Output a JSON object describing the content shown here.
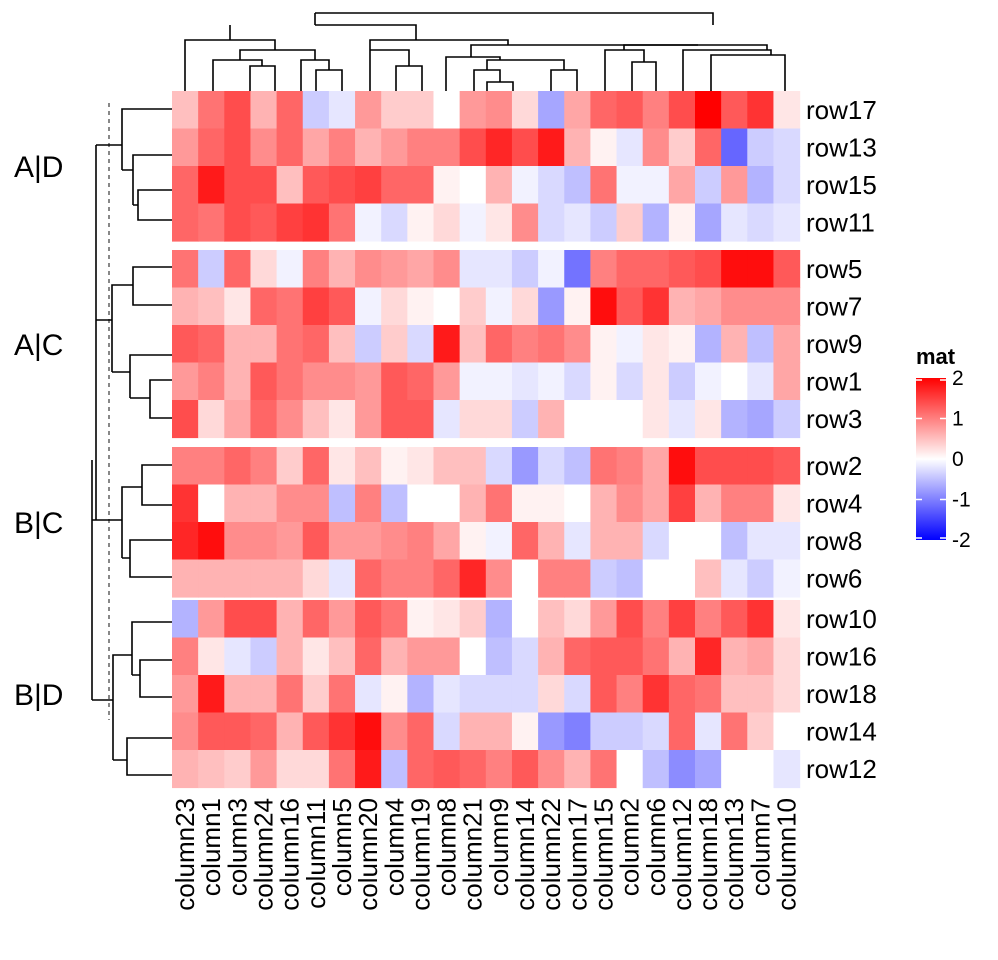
{
  "chart_data": {
    "type": "heatmap",
    "legend": {
      "title": "mat",
      "ticks": [
        2,
        1,
        0,
        -1,
        -2
      ],
      "tick_labels": [
        "2",
        "1",
        "0",
        "-1",
        "-2"
      ],
      "colors": {
        "low": "#0000ff",
        "mid": "#ffffff",
        "high": "#ff0000"
      },
      "range": [
        -2,
        2
      ]
    },
    "columns": [
      "column23",
      "column1",
      "column3",
      "column24",
      "column16",
      "column11",
      "column5",
      "column20",
      "column4",
      "column19",
      "column8",
      "column21",
      "column9",
      "column14",
      "column22",
      "column17",
      "column15",
      "column2",
      "column6",
      "column12",
      "column18",
      "column13",
      "column7",
      "column10"
    ],
    "row_groups": [
      {
        "label": "A|D",
        "rows": [
          "row17",
          "row13",
          "row15",
          "row11"
        ]
      },
      {
        "label": "A|C",
        "rows": [
          "row5",
          "row7",
          "row9",
          "row1",
          "row3"
        ]
      },
      {
        "label": "B|C",
        "rows": [
          "row2",
          "row4",
          "row8",
          "row6"
        ]
      },
      {
        "label": "B|D",
        "rows": [
          "row10",
          "row16",
          "row18",
          "row14",
          "row12"
        ]
      }
    ],
    "values": [
      [
        0.5,
        1.1,
        1.4,
        0.6,
        1.2,
        -0.4,
        -0.2,
        0.8,
        0.4,
        0.4,
        0.0,
        0.8,
        0.9,
        0.3,
        -0.7,
        0.7,
        1.2,
        1.3,
        1.0,
        1.4,
        2.0,
        1.3,
        1.6,
        0.2
      ],
      [
        0.8,
        1.2,
        1.4,
        0.9,
        1.2,
        0.7,
        1.0,
        0.6,
        0.8,
        1.0,
        1.0,
        1.4,
        1.7,
        1.4,
        1.8,
        0.6,
        0.1,
        -0.2,
        0.9,
        0.4,
        1.2,
        -1.2,
        -0.4,
        -0.3
      ],
      [
        1.2,
        1.8,
        1.4,
        1.4,
        0.5,
        1.3,
        1.4,
        1.5,
        1.2,
        1.2,
        0.1,
        0.0,
        0.6,
        -0.1,
        -0.3,
        -0.5,
        1.1,
        -0.1,
        -0.1,
        0.7,
        -0.4,
        0.8,
        -0.6,
        -0.3
      ],
      [
        1.2,
        1.1,
        1.4,
        1.3,
        1.5,
        1.6,
        1.1,
        -0.1,
        -0.3,
        0.1,
        0.3,
        -0.1,
        0.2,
        0.9,
        -0.3,
        -0.2,
        -0.4,
        0.4,
        -0.6,
        0.1,
        -0.7,
        -0.2,
        -0.3,
        -0.2
      ],
      [
        1.1,
        -0.4,
        1.2,
        0.3,
        -0.1,
        1.0,
        0.6,
        0.9,
        0.8,
        0.7,
        0.9,
        -0.2,
        -0.2,
        -0.4,
        -0.1,
        -1.1,
        1.0,
        1.2,
        1.2,
        1.3,
        1.4,
        1.9,
        1.9,
        1.3
      ],
      [
        0.6,
        0.5,
        0.2,
        1.2,
        1.1,
        1.5,
        1.3,
        -0.1,
        0.3,
        0.1,
        0.0,
        0.4,
        -0.1,
        0.3,
        -0.8,
        0.1,
        1.9,
        1.3,
        1.6,
        0.6,
        0.7,
        0.9,
        0.9,
        0.9
      ],
      [
        1.3,
        1.2,
        0.6,
        0.6,
        1.1,
        1.2,
        0.5,
        -0.4,
        0.4,
        -0.3,
        1.8,
        0.5,
        1.2,
        1.0,
        1.1,
        0.9,
        0.1,
        -0.1,
        0.2,
        0.1,
        -0.6,
        0.6,
        -0.5,
        0.7
      ],
      [
        0.8,
        1.0,
        0.6,
        1.3,
        1.1,
        0.9,
        0.9,
        0.8,
        1.3,
        1.2,
        0.8,
        -0.1,
        -0.1,
        -0.2,
        -0.1,
        -0.3,
        0.1,
        -0.3,
        0.2,
        -0.4,
        -0.1,
        0.0,
        -0.2,
        0.7
      ],
      [
        1.4,
        0.3,
        0.7,
        1.2,
        0.9,
        0.5,
        0.2,
        0.8,
        1.3,
        1.3,
        -0.2,
        0.3,
        0.3,
        -0.4,
        0.6,
        0.0,
        0.0,
        0.0,
        0.2,
        -0.2,
        0.2,
        -0.6,
        -0.7,
        -0.4
      ],
      [
        1.0,
        1.0,
        1.2,
        1.0,
        0.4,
        1.2,
        0.2,
        0.5,
        0.1,
        0.2,
        0.5,
        0.5,
        -0.3,
        -0.8,
        -0.3,
        -0.5,
        1.1,
        1.0,
        0.7,
        1.9,
        1.4,
        1.4,
        1.4,
        1.3
      ],
      [
        1.6,
        0.0,
        0.6,
        0.6,
        0.9,
        0.9,
        -0.5,
        1.0,
        -0.5,
        0.0,
        0.0,
        0.6,
        1.1,
        0.1,
        0.1,
        0.0,
        0.6,
        0.9,
        0.7,
        1.5,
        0.6,
        1.0,
        1.0,
        0.2
      ],
      [
        1.7,
        1.9,
        0.9,
        0.9,
        0.8,
        1.3,
        0.8,
        0.8,
        0.9,
        1.0,
        0.7,
        0.1,
        -0.1,
        1.2,
        0.6,
        -0.2,
        0.6,
        0.6,
        -0.3,
        0.0,
        0.0,
        -0.5,
        -0.2,
        -0.2
      ],
      [
        0.6,
        0.6,
        0.6,
        0.6,
        0.6,
        0.3,
        -0.2,
        1.2,
        1.0,
        1.0,
        1.2,
        1.7,
        0.9,
        0.0,
        1.0,
        1.0,
        -0.4,
        -0.5,
        0.0,
        0.0,
        0.5,
        -0.2,
        -0.4,
        -0.1
      ],
      [
        -0.6,
        0.8,
        1.4,
        1.4,
        0.6,
        1.2,
        0.8,
        1.3,
        1.1,
        0.1,
        0.2,
        0.4,
        -0.6,
        0.0,
        0.5,
        0.3,
        0.8,
        1.4,
        1.0,
        1.5,
        1.0,
        1.3,
        1.6,
        0.2
      ],
      [
        1.0,
        0.2,
        -0.2,
        -0.4,
        0.6,
        0.2,
        0.5,
        1.2,
        0.6,
        0.8,
        0.8,
        0.0,
        -0.5,
        -0.3,
        0.6,
        1.2,
        1.3,
        1.3,
        1.1,
        0.6,
        1.7,
        0.6,
        0.7,
        0.3
      ],
      [
        0.8,
        1.8,
        0.6,
        0.6,
        1.1,
        0.4,
        1.1,
        -0.2,
        0.1,
        -0.6,
        -0.2,
        -0.3,
        -0.3,
        -0.3,
        0.3,
        -0.3,
        1.3,
        1.0,
        1.6,
        1.2,
        1.1,
        0.5,
        0.5,
        0.3
      ],
      [
        0.9,
        1.3,
        1.3,
        1.2,
        0.6,
        1.3,
        1.6,
        1.9,
        0.9,
        1.2,
        -0.3,
        0.6,
        0.6,
        0.1,
        -0.8,
        -1.0,
        -0.4,
        -0.4,
        -0.3,
        1.2,
        -0.2,
        1.1,
        0.4,
        0.0
      ],
      [
        0.6,
        0.5,
        0.4,
        0.8,
        0.3,
        0.3,
        1.1,
        1.8,
        -0.5,
        1.2,
        1.3,
        1.2,
        1.0,
        1.3,
        0.9,
        0.6,
        1.1,
        0.0,
        -0.5,
        -0.9,
        -0.7,
        0.0,
        0.0,
        -0.2
      ]
    ]
  }
}
